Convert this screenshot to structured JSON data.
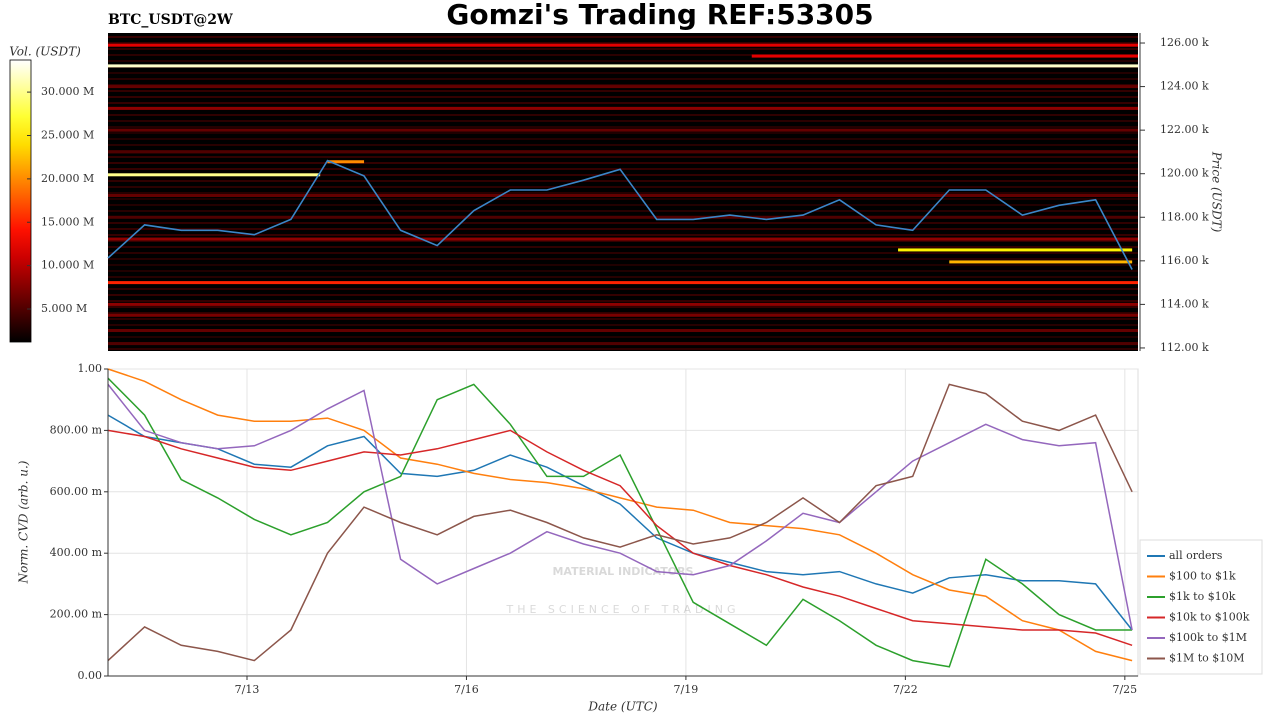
{
  "chart_data": [
    {
      "type": "heatmap",
      "title": "Gomzi's Trading REF:53305",
      "subtitle": "BTC_USDT@2W",
      "ylabel": "Price (USDT)",
      "colorbar_label": "Vol. (USDT)",
      "colormap": "hot",
      "clim": [
        1200000,
        33700000
      ],
      "cticks": [
        {
          "value": 5000000,
          "label": "5.000 M"
        },
        {
          "value": 10000000,
          "label": "10.000 M"
        },
        {
          "value": 15000000,
          "label": "15.000 M"
        },
        {
          "value": 20000000,
          "label": "20.000 M"
        },
        {
          "value": 25000000,
          "label": "25.000 M"
        },
        {
          "value": 30000000,
          "label": "30.000 M"
        }
      ],
      "xlim": [
        11.1,
        25.18
      ],
      "ylim": [
        111860,
        126460
      ],
      "yticks": [
        {
          "value": 112000,
          "label": "112.00 k"
        },
        {
          "value": 114000,
          "label": "114.00 k"
        },
        {
          "value": 116000,
          "label": "116.00 k"
        },
        {
          "value": 118000,
          "label": "118.00 k"
        },
        {
          "value": 120000,
          "label": "120.00 k"
        },
        {
          "value": 122000,
          "label": "122.00 k"
        },
        {
          "value": 124000,
          "label": "124.00 k"
        },
        {
          "value": 126000,
          "label": "126.00 k"
        }
      ],
      "levels": {
        "price": [
          125900,
          125400,
          124950,
          124000,
          123000,
          122000,
          121000,
          120550,
          119950,
          119000,
          118000,
          117000,
          116500,
          115950,
          115000,
          114000,
          113500,
          112800,
          112200
        ],
        "volume": [
          12000000,
          12000000,
          32000000,
          6000000,
          8000000,
          6000000,
          5000000,
          20000000,
          30000000,
          6000000,
          5000000,
          8000000,
          25000000,
          22000000,
          15000000,
          8000000,
          7000000,
          6000000,
          5000000
        ],
        "start": [
          11.1,
          19.9,
          11.1,
          11.1,
          11.1,
          11.1,
          11.1,
          14.1,
          11.1,
          11.1,
          11.1,
          11.1,
          21.9,
          22.6,
          11.1,
          11.1,
          11.1,
          11.1,
          11.1
        ],
        "end": [
          25.18,
          25.18,
          25.18,
          25.18,
          25.18,
          25.18,
          25.18,
          14.6,
          14.0,
          25.18,
          25.18,
          25.18,
          25.1,
          25.1,
          25.18,
          25.18,
          25.18,
          25.18,
          25.18
        ]
      },
      "line_color": "#3a86c8",
      "x": [
        11.1,
        11.6,
        12.1,
        12.6,
        13.1,
        13.6,
        14.1,
        14.6,
        15.1,
        15.6,
        16.1,
        16.6,
        17.1,
        17.6,
        18.1,
        18.6,
        19.1,
        19.6,
        20.1,
        20.6,
        21.1,
        21.6,
        22.1,
        22.6,
        23.1,
        23.6,
        24.1,
        24.6,
        25.1
      ],
      "values": [
        116130,
        117650,
        117400,
        117400,
        117200,
        117900,
        120600,
        119900,
        117400,
        116700,
        118300,
        119250,
        119250,
        119700,
        120200,
        117900,
        117900,
        118100,
        117900,
        118100,
        118800,
        117650,
        117400,
        119250,
        119250,
        118100,
        118550,
        118800,
        115600
      ]
    },
    {
      "type": "line",
      "xlabel": "Date (UTC)",
      "ylabel": "Norm. CVD (arb. u.)",
      "grid": true,
      "legend": "right",
      "watermark": {
        "title": "MATERIAL INDICATORS",
        "subtitle": "THE SCIENCE OF TRADING"
      },
      "xlim": [
        11.1,
        25.18
      ],
      "xticks": [
        {
          "value": 13,
          "label": "7/13"
        },
        {
          "value": 16,
          "label": "7/16"
        },
        {
          "value": 19,
          "label": "7/19"
        },
        {
          "value": 22,
          "label": "7/22"
        },
        {
          "value": 25,
          "label": "7/25"
        }
      ],
      "ylim": [
        0,
        1
      ],
      "yticks": [
        {
          "value": 0,
          "label": "0.00"
        },
        {
          "value": 0.2,
          "label": "200.00 m"
        },
        {
          "value": 0.4,
          "label": "400.00 m"
        },
        {
          "value": 0.6,
          "label": "600.00 m"
        },
        {
          "value": 0.8,
          "label": "800.00 m"
        },
        {
          "value": 1,
          "label": "1.00"
        }
      ],
      "x": [
        11.1,
        11.6,
        12.1,
        12.6,
        13.1,
        13.6,
        14.1,
        14.6,
        15.1,
        15.6,
        16.1,
        16.6,
        17.1,
        17.6,
        18.1,
        18.6,
        19.1,
        19.6,
        20.1,
        20.6,
        21.1,
        21.6,
        22.1,
        22.6,
        23.1,
        23.6,
        24.1,
        24.6,
        25.1
      ],
      "series": [
        {
          "name": "all orders",
          "color": "#1f77b4",
          "values": [
            0.85,
            0.78,
            0.76,
            0.74,
            0.69,
            0.68,
            0.75,
            0.78,
            0.66,
            0.65,
            0.67,
            0.72,
            0.68,
            0.62,
            0.56,
            0.45,
            0.4,
            0.37,
            0.34,
            0.33,
            0.34,
            0.3,
            0.27,
            0.32,
            0.33,
            0.31,
            0.31,
            0.3,
            0.15
          ]
        },
        {
          "name": "$100 to $1k",
          "color": "#ff7f0e",
          "values": [
            1.0,
            0.96,
            0.9,
            0.85,
            0.83,
            0.83,
            0.84,
            0.8,
            0.71,
            0.69,
            0.66,
            0.64,
            0.63,
            0.61,
            0.58,
            0.55,
            0.54,
            0.5,
            0.49,
            0.48,
            0.46,
            0.4,
            0.33,
            0.28,
            0.26,
            0.18,
            0.15,
            0.08,
            0.05
          ]
        },
        {
          "name": "$1k to $10k",
          "color": "#2ca02c",
          "values": [
            0.97,
            0.85,
            0.64,
            0.58,
            0.51,
            0.46,
            0.5,
            0.6,
            0.65,
            0.9,
            0.95,
            0.82,
            0.65,
            0.65,
            0.72,
            0.48,
            0.24,
            0.17,
            0.1,
            0.25,
            0.18,
            0.1,
            0.05,
            0.03,
            0.38,
            0.3,
            0.2,
            0.15,
            0.15
          ]
        },
        {
          "name": "$10k to $100k",
          "color": "#d62728",
          "values": [
            0.8,
            0.78,
            0.74,
            0.71,
            0.68,
            0.67,
            0.7,
            0.73,
            0.72,
            0.74,
            0.77,
            0.8,
            0.73,
            0.67,
            0.62,
            0.49,
            0.4,
            0.36,
            0.33,
            0.29,
            0.26,
            0.22,
            0.18,
            0.17,
            0.16,
            0.15,
            0.15,
            0.14,
            0.1
          ]
        },
        {
          "name": "$100k to $1M",
          "color": "#9467bd",
          "values": [
            0.95,
            0.8,
            0.76,
            0.74,
            0.75,
            0.8,
            0.87,
            0.93,
            0.38,
            0.3,
            0.35,
            0.4,
            0.47,
            0.43,
            0.4,
            0.34,
            0.33,
            0.36,
            0.44,
            0.53,
            0.5,
            0.6,
            0.7,
            0.76,
            0.82,
            0.77,
            0.75,
            0.76,
            0.15
          ]
        },
        {
          "name": "$1M to $10M",
          "color": "#8c564b",
          "values": [
            0.05,
            0.16,
            0.1,
            0.08,
            0.05,
            0.15,
            0.4,
            0.55,
            0.5,
            0.46,
            0.52,
            0.54,
            0.5,
            0.45,
            0.42,
            0.46,
            0.43,
            0.45,
            0.5,
            0.58,
            0.5,
            0.62,
            0.65,
            0.95,
            0.92,
            0.83,
            0.8,
            0.85,
            0.6
          ]
        }
      ]
    }
  ]
}
